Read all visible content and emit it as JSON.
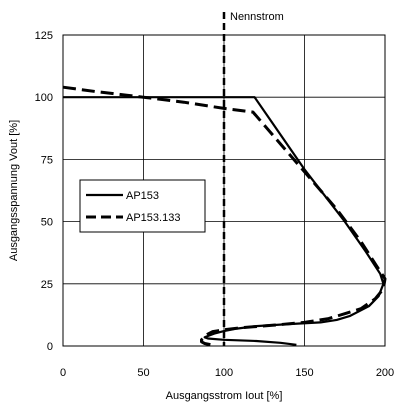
{
  "chart_data": {
    "type": "line",
    "annotation": "Nennstrom",
    "xlabel": "Ausgangsstrom Iout [%]",
    "ylabel": "Ausgangsspannung Vout [%]",
    "xlim": [
      0,
      200
    ],
    "ylim": [
      0,
      125
    ],
    "xticks": [
      0,
      50,
      100,
      150,
      200
    ],
    "yticks": [
      0,
      25,
      50,
      75,
      100,
      125
    ],
    "grid": true,
    "legend_position": "middle-left",
    "reference_line_x": 100,
    "series": [
      {
        "name": "AP153",
        "style": "solid",
        "color": "#000000",
        "points": [
          [
            0,
            100
          ],
          [
            50,
            100
          ],
          [
            100,
            100
          ],
          [
            119,
            100
          ],
          [
            150,
            71
          ],
          [
            175,
            50
          ],
          [
            188,
            38
          ],
          [
            197,
            29
          ],
          [
            199,
            25
          ],
          [
            196,
            20
          ],
          [
            190,
            16
          ],
          [
            178,
            12
          ],
          [
            170,
            10.5
          ],
          [
            160,
            9.5
          ],
          [
            140,
            8.8
          ],
          [
            120,
            8
          ],
          [
            108,
            7
          ],
          [
            100,
            6
          ],
          [
            94,
            5
          ],
          [
            90,
            4
          ],
          [
            88,
            3.5
          ],
          [
            90,
            3
          ],
          [
            100,
            2.5
          ],
          [
            120,
            2
          ],
          [
            135,
            1.3
          ],
          [
            145,
            0.5
          ]
        ]
      },
      {
        "name": "AP153.133",
        "style": "dashed",
        "color": "#000000",
        "points": [
          [
            0,
            104
          ],
          [
            20,
            102.3
          ],
          [
            50,
            100
          ],
          [
            75,
            98
          ],
          [
            100,
            95.5
          ],
          [
            118,
            94
          ],
          [
            130,
            85
          ],
          [
            150,
            70
          ],
          [
            170,
            55
          ],
          [
            185,
            42
          ],
          [
            195,
            32
          ],
          [
            200,
            27
          ],
          [
            199,
            23
          ],
          [
            194,
            19
          ],
          [
            185,
            15
          ],
          [
            175,
            13
          ],
          [
            165,
            11
          ],
          [
            150,
            9.5
          ],
          [
            130,
            8.3
          ],
          [
            110,
            7.3
          ],
          [
            100,
            6.5
          ],
          [
            93,
            5.8
          ],
          [
            90,
            4.8
          ],
          [
            88,
            3.8
          ],
          [
            87,
            3
          ],
          [
            86,
            2.5
          ],
          [
            86,
            1.7
          ],
          [
            88,
            1
          ],
          [
            92,
            0.5
          ]
        ]
      }
    ]
  }
}
